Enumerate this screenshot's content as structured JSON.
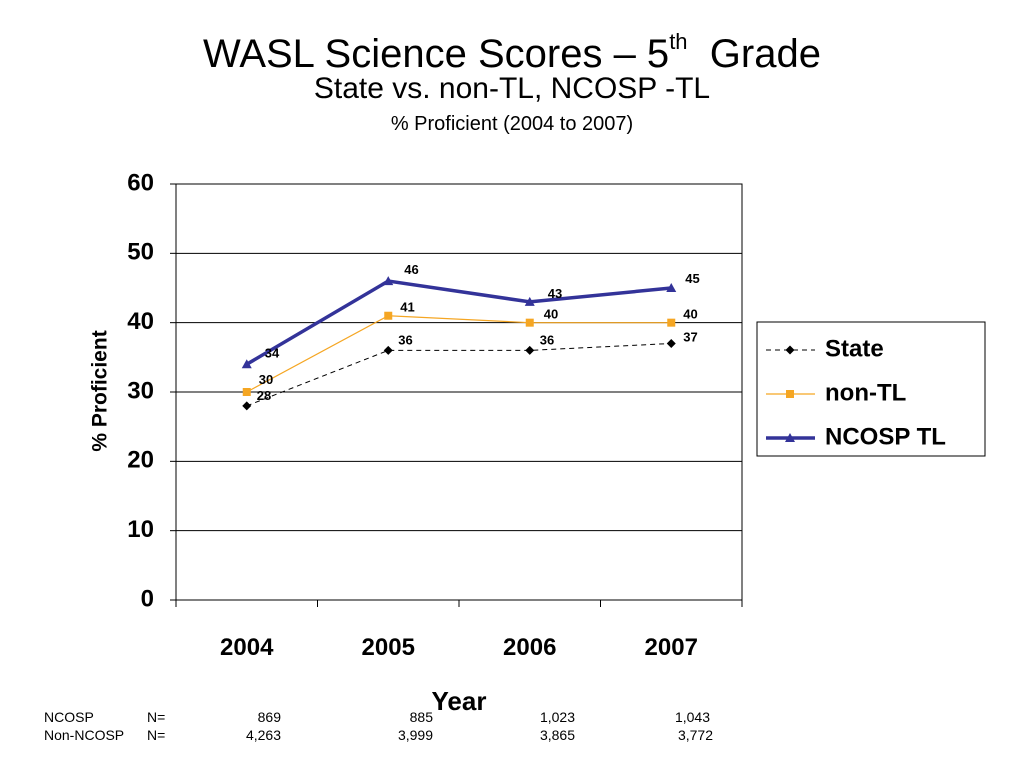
{
  "title": {
    "main_pre": "WASL Science Scores – 5",
    "main_sup": "th",
    "main_post": "  Grade",
    "subtitle": "State vs. non-TL, NCOSP -TL",
    "note": "% Proficient (2004 to 2007)"
  },
  "chart_data": {
    "type": "line",
    "categories": [
      "2004",
      "2005",
      "2006",
      "2007"
    ],
    "series": [
      {
        "name": "State",
        "values": [
          28,
          36,
          36,
          37
        ],
        "color": "#000000",
        "dash": true,
        "marker": "diamond"
      },
      {
        "name": "non-TL",
        "values": [
          30,
          41,
          40,
          40
        ],
        "color": "#F5A623",
        "dash": false,
        "marker": "square"
      },
      {
        "name": "NCOSP TL",
        "values": [
          34,
          46,
          43,
          45
        ],
        "color": "#333399",
        "dash": false,
        "marker": "triangle"
      }
    ],
    "ylabel": "% Proficient",
    "xlabel": "Year",
    "ylim": [
      0,
      60
    ],
    "yticks": [
      "0",
      "10",
      "20",
      "30",
      "40",
      "50",
      "60"
    ],
    "grid": true,
    "legend": "right"
  },
  "n_table": {
    "rows": [
      {
        "label": "NCOSP",
        "n_label": "N=",
        "values": [
          "869",
          "885",
          "1,023",
          "1,043"
        ]
      },
      {
        "label": "Non-NCOSP",
        "n_label": "N=",
        "values": [
          "4,263",
          "3,999",
          "3,865",
          "3,772"
        ]
      }
    ]
  }
}
